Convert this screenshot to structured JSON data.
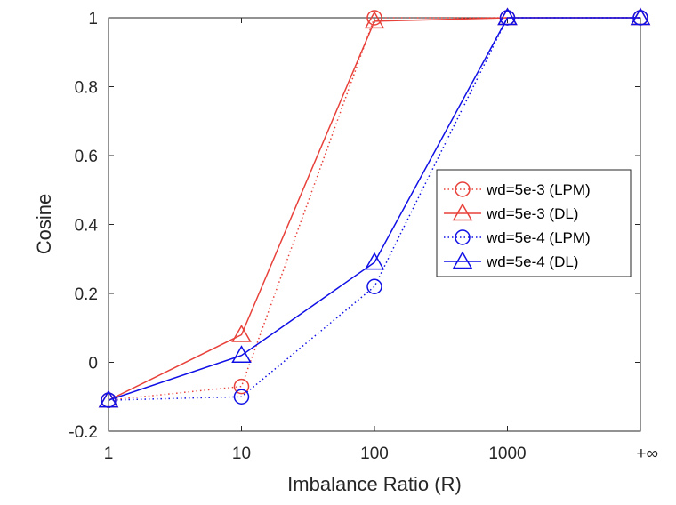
{
  "chart_data": {
    "type": "line",
    "categories": [
      "1",
      "10",
      "100",
      "1000",
      "+∞"
    ],
    "xlabel": "Imbalance Ratio (R)",
    "ylabel": "Cosine",
    "ylim": [
      -0.2,
      1
    ],
    "yticks": [
      "-0.2",
      "0",
      "0.2",
      "0.4",
      "0.6",
      "0.8",
      "1"
    ],
    "grid": false,
    "legend_position": "right",
    "series": [
      {
        "name": "wd=5e-3 (LPM)",
        "color": "#e8413a",
        "marker": "circle",
        "line_style": "dotted",
        "values": [
          -0.11,
          -0.07,
          1.0,
          1.0,
          1.0
        ]
      },
      {
        "name": "wd=5e-3 (DL)",
        "color": "#e8413a",
        "marker": "triangle",
        "line_style": "solid",
        "values": [
          -0.11,
          0.08,
          0.99,
          1.0,
          1.0
        ]
      },
      {
        "name": "wd=5e-4 (LPM)",
        "color": "#1010e6",
        "marker": "circle",
        "line_style": "dotted",
        "values": [
          -0.11,
          -0.1,
          0.22,
          1.0,
          1.0
        ]
      },
      {
        "name": "wd=5e-4 (DL)",
        "color": "#1010e6",
        "marker": "triangle",
        "line_style": "solid",
        "values": [
          -0.11,
          0.02,
          0.29,
          1.0,
          1.0
        ]
      }
    ]
  }
}
